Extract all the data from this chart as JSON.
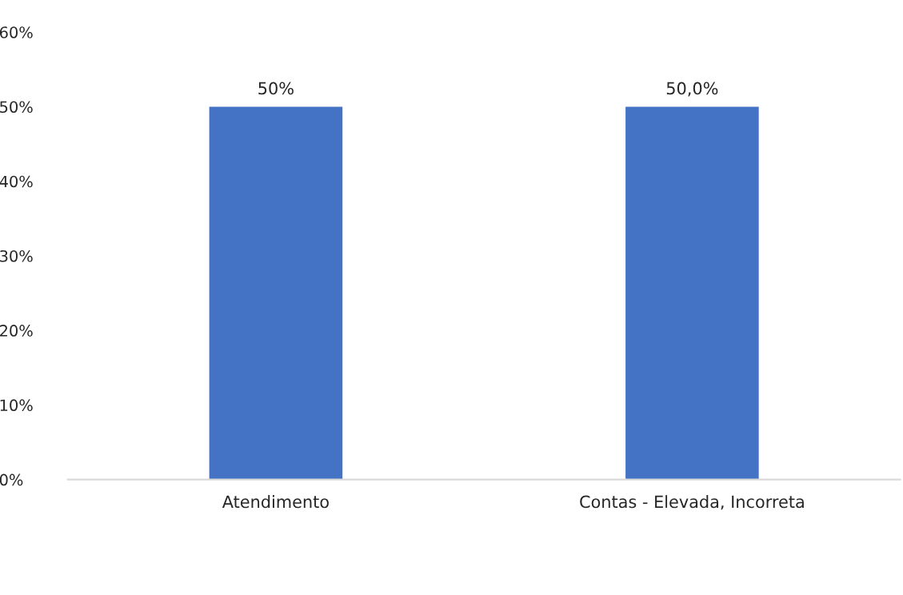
{
  "chart_data": {
    "type": "bar",
    "categories": [
      "Atendimento",
      "Contas - Elevada, Incorreta"
    ],
    "values": [
      50,
      50
    ],
    "value_labels": [
      "50%",
      "50,0%"
    ],
    "color": "#4472c4",
    "ylim": [
      0,
      60
    ],
    "yticks": [
      {
        "value": 0,
        "label": "0%"
      },
      {
        "value": 10,
        "label": "10%"
      },
      {
        "value": 20,
        "label": "20%"
      },
      {
        "value": 30,
        "label": "30%"
      },
      {
        "value": 40,
        "label": "40%"
      },
      {
        "value": 50,
        "label": "50%"
      },
      {
        "value": 60,
        "label": "60%"
      }
    ],
    "grid": false,
    "legend": false
  }
}
